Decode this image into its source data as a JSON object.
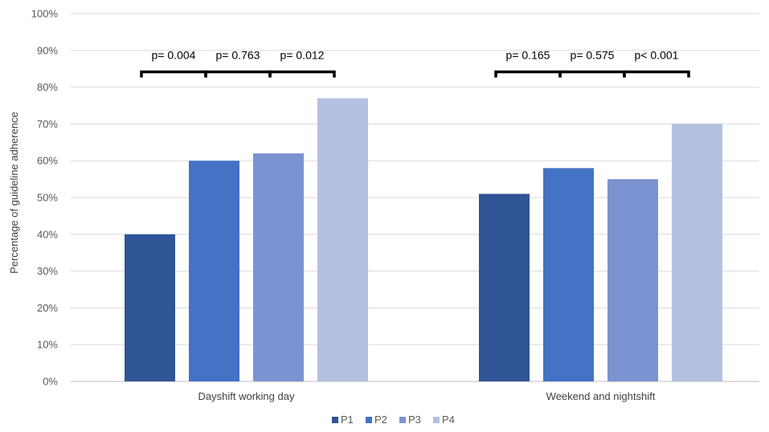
{
  "chart_data": {
    "type": "bar",
    "title": "",
    "xlabel": "",
    "ylabel": "Percentage of guideline adherence",
    "ylim": [
      0,
      100
    ],
    "y_ticks": [
      "0%",
      "10%",
      "20%",
      "30%",
      "40%",
      "50%",
      "60%",
      "70%",
      "80%",
      "90%",
      "100%"
    ],
    "categories": [
      "Dayshift working day",
      "Weekend and nightshift"
    ],
    "series": [
      {
        "name": "P1",
        "color": "#2f5597",
        "values": [
          40,
          51
        ]
      },
      {
        "name": "P2",
        "color": "#4472c4",
        "values": [
          60,
          58
        ]
      },
      {
        "name": "P3",
        "color": "#7b93d0",
        "values": [
          62,
          55
        ]
      },
      {
        "name": "P4",
        "color": "#b4c0e0",
        "values": [
          77,
          70
        ]
      }
    ],
    "annotations": [
      {
        "category": 0,
        "between": [
          0,
          1
        ],
        "text": "p= 0.004"
      },
      {
        "category": 0,
        "between": [
          1,
          2
        ],
        "text": "p= 0.763"
      },
      {
        "category": 0,
        "between": [
          2,
          3
        ],
        "text": "p= 0.012"
      },
      {
        "category": 1,
        "between": [
          0,
          1
        ],
        "text": "p= 0.165"
      },
      {
        "category": 1,
        "between": [
          1,
          2
        ],
        "text": "p= 0.575"
      },
      {
        "category": 1,
        "between": [
          2,
          3
        ],
        "text": "p< 0.001"
      }
    ],
    "bracket_level": 82,
    "grid": true,
    "legend": "bottom"
  }
}
